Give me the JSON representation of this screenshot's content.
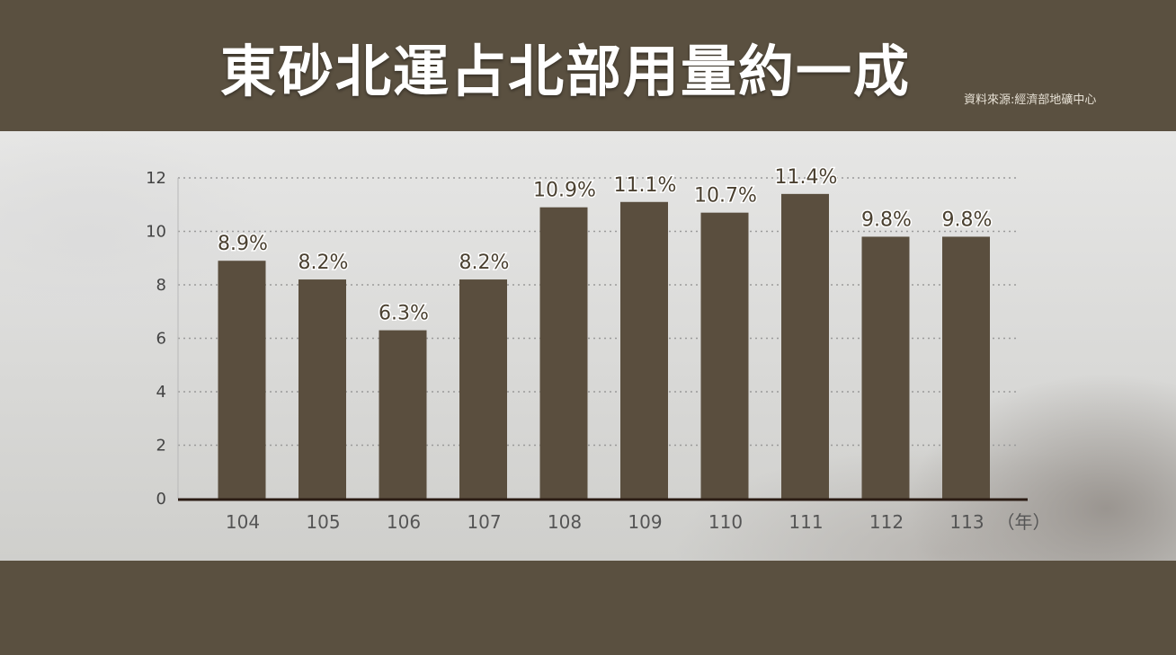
{
  "header": {
    "title": "東砂北運占北部用量約一成",
    "source": "資料來源:經濟部地礦中心"
  },
  "colors": {
    "bar": "#5a4e3e",
    "band": "#5a5040",
    "axis": "#2b1c14",
    "grid": "#9a9a9a"
  },
  "chart_data": {
    "type": "bar",
    "categories": [
      "104",
      "105",
      "106",
      "107",
      "108",
      "109",
      "110",
      "111",
      "112",
      "113"
    ],
    "values": [
      8.9,
      8.2,
      6.3,
      8.2,
      10.9,
      11.1,
      10.7,
      11.4,
      9.8,
      9.8
    ],
    "data_labels": [
      "8.9%",
      "8.2%",
      "6.3%",
      "8.2%",
      "10.9%",
      "11.1%",
      "10.7%",
      "11.4%",
      "9.8%",
      "9.8%"
    ],
    "x_unit": "（年）",
    "yticks": [
      "0",
      "2",
      "4",
      "6",
      "8",
      "10",
      "12"
    ],
    "ylim": [
      0,
      12
    ],
    "grid": true,
    "legend": "none"
  }
}
